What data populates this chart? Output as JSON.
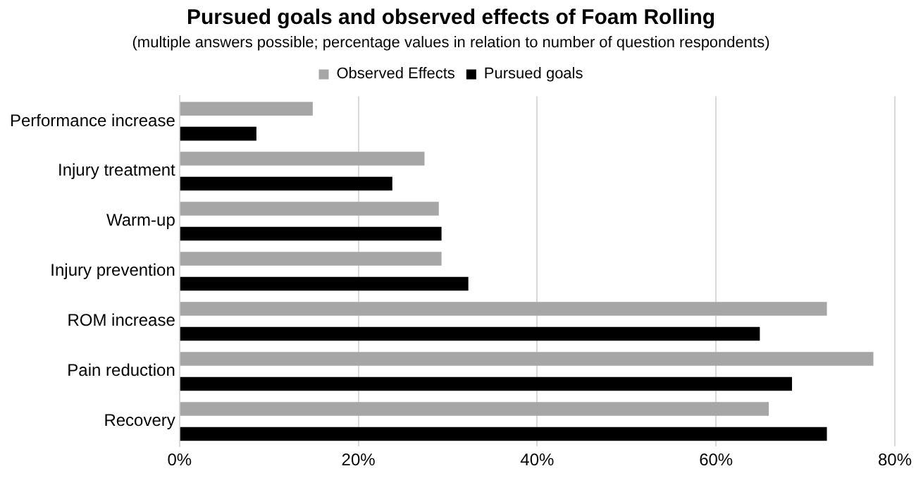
{
  "chart_data": {
    "type": "bar",
    "orientation": "horizontal",
    "title": "Pursued goals and observed effects of Foam Rolling",
    "subtitle": "(multiple answers possible; percentage values in relation to number of question respondents)",
    "categories": [
      "Performance increase",
      "Injury treatment",
      "Warm-up",
      "Injury prevention",
      "ROM increase",
      "Pain reduction",
      "Recovery"
    ],
    "series": [
      {
        "name": "Observed Effects",
        "color": "#a6a6a6",
        "values": [
          14.9,
          27.4,
          29.0,
          29.3,
          72.4,
          77.6,
          65.9
        ]
      },
      {
        "name": "Pursued goals",
        "color": "#000000",
        "values": [
          8.6,
          23.8,
          29.3,
          32.3,
          64.9,
          68.5,
          72.4
        ]
      }
    ],
    "xlim": [
      0,
      80
    ],
    "xticks": [
      {
        "value": 0,
        "label": "0%"
      },
      {
        "value": 20,
        "label": "20%"
      },
      {
        "value": 40,
        "label": "40%"
      },
      {
        "value": 60,
        "label": "60%"
      },
      {
        "value": 80,
        "label": "80%"
      }
    ],
    "grid": "x",
    "legend": "top"
  }
}
